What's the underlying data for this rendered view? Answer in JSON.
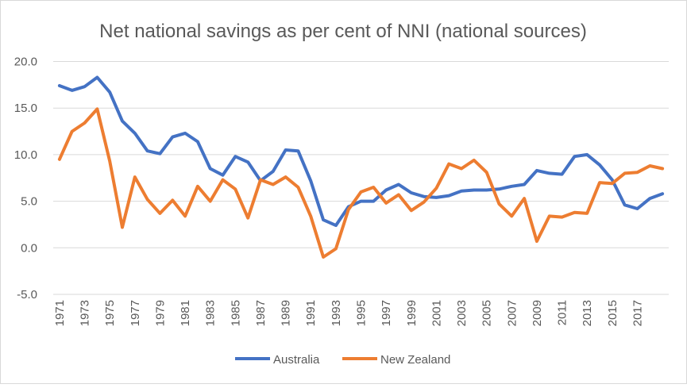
{
  "chart_data": {
    "type": "line",
    "title": "Net national savings as per cent of NNI (national sources)",
    "xlabel": "",
    "ylabel": "",
    "ylim": [
      -5,
      20
    ],
    "yticks": [
      "20.0",
      "15.0",
      "10.0",
      "5.0",
      "0.0",
      "-5.0"
    ],
    "ytick_values": [
      20,
      15,
      10,
      5,
      0,
      -5
    ],
    "grid": true,
    "legend": "bottom",
    "categories": [
      1971,
      1972,
      1973,
      1974,
      1975,
      1976,
      1977,
      1978,
      1979,
      1980,
      1981,
      1982,
      1983,
      1984,
      1985,
      1986,
      1987,
      1988,
      1989,
      1990,
      1991,
      1992,
      1993,
      1994,
      1995,
      1996,
      1997,
      1998,
      1999,
      2000,
      2001,
      2002,
      2003,
      2004,
      2005,
      2006,
      2007,
      2008,
      2009,
      2010,
      2011,
      2012,
      2013,
      2014,
      2015,
      2016,
      2017,
      2018,
      2019
    ],
    "xtick_labels": [
      "1971",
      "1973",
      "1975",
      "1977",
      "1979",
      "1981",
      "1983",
      "1985",
      "1987",
      "1989",
      "1991",
      "1993",
      "1995",
      "1997",
      "1999",
      "2001",
      "2003",
      "2005",
      "2007",
      "2009",
      "2011",
      "2013",
      "2015",
      "2017"
    ],
    "series": [
      {
        "name": "Australia",
        "color": "#4472C4",
        "values": [
          17.4,
          16.9,
          17.3,
          18.3,
          16.7,
          13.6,
          12.3,
          10.4,
          10.1,
          11.9,
          12.3,
          11.4,
          8.5,
          7.8,
          9.8,
          9.2,
          7.2,
          8.2,
          10.5,
          10.4,
          7.2,
          3.0,
          2.4,
          4.4,
          5.0,
          5.0,
          6.2,
          6.8,
          5.9,
          5.5,
          5.4,
          5.6,
          6.1,
          6.2,
          6.2,
          6.3,
          6.6,
          6.8,
          8.3,
          8.0,
          7.9,
          9.8,
          10.0,
          8.9,
          7.3,
          4.6,
          4.2,
          5.3,
          5.8
        ]
      },
      {
        "name": "New Zealand",
        "color": "#ED7D31",
        "values": [
          9.5,
          12.5,
          13.4,
          14.9,
          9.3,
          2.2,
          7.6,
          5.2,
          3.7,
          5.1,
          3.4,
          6.6,
          5.0,
          7.3,
          6.3,
          3.2,
          7.3,
          6.8,
          7.6,
          6.5,
          3.4,
          -1.0,
          -0.1,
          4.1,
          6.0,
          6.5,
          4.8,
          5.7,
          4.0,
          4.9,
          6.4,
          9.0,
          8.5,
          9.4,
          8.1,
          4.7,
          3.4,
          5.3,
          0.7,
          3.4,
          3.3,
          3.8,
          3.7,
          7.0,
          6.9,
          8.0,
          8.1,
          8.8,
          8.5
        ]
      }
    ]
  }
}
